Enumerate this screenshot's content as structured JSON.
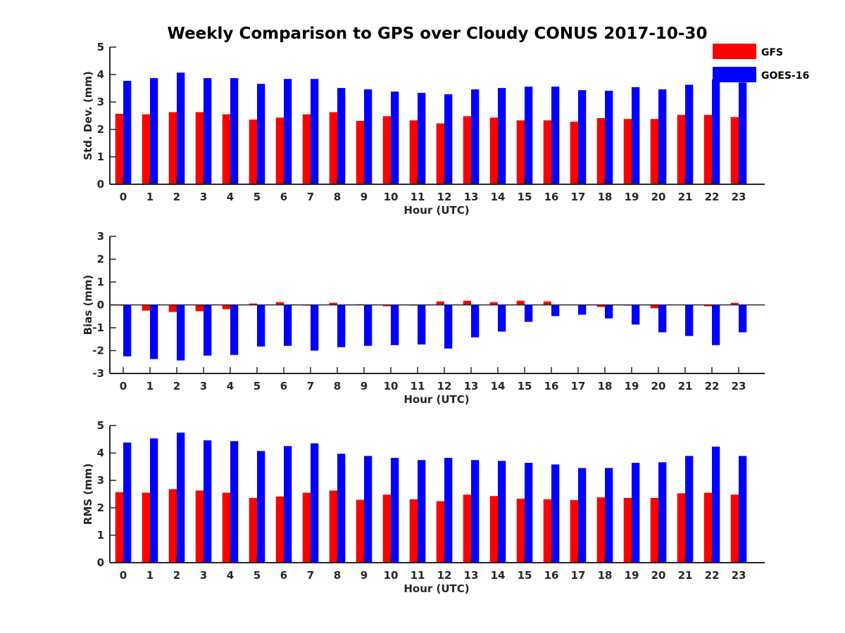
{
  "title": "Weekly Comparison to GPS over Cloudy CONUS 2017-10-30",
  "colors": {
    "GFS": "#ff0000",
    "GOES-16": "#0000ff",
    "axis": "#262626"
  },
  "legend": [
    {
      "name": "GFS",
      "color": "#ff0000"
    },
    {
      "name": "GOES-16",
      "color": "#0000ff"
    }
  ],
  "chart_data": [
    {
      "type": "bar",
      "title": "Weekly Comparison to GPS over Cloudy CONUS 2017-10-30",
      "xlabel": "Hour (UTC)",
      "ylabel": "Std. Dev. (mm)",
      "ylim": [
        0,
        5
      ],
      "yticks": [
        0,
        1,
        2,
        3,
        4,
        5
      ],
      "categories": [
        "0",
        "1",
        "2",
        "3",
        "4",
        "5",
        "6",
        "7",
        "8",
        "9",
        "10",
        "11",
        "12",
        "13",
        "14",
        "15",
        "16",
        "17",
        "18",
        "19",
        "20",
        "21",
        "22",
        "23"
      ],
      "legend_position": "top-right",
      "grid": false,
      "series": [
        {
          "name": "GFS",
          "values": [
            2.57,
            2.55,
            2.63,
            2.63,
            2.55,
            2.36,
            2.43,
            2.55,
            2.63,
            2.31,
            2.48,
            2.33,
            2.22,
            2.48,
            2.43,
            2.33,
            2.33,
            2.28,
            2.41,
            2.38,
            2.38,
            2.53,
            2.53,
            2.45
          ]
        },
        {
          "name": "GOES-16",
          "values": [
            3.77,
            3.87,
            4.07,
            3.87,
            3.87,
            3.66,
            3.84,
            3.84,
            3.51,
            3.46,
            3.38,
            3.33,
            3.28,
            3.46,
            3.51,
            3.56,
            3.56,
            3.43,
            3.41,
            3.54,
            3.46,
            3.63,
            3.82,
            3.71
          ]
        }
      ]
    },
    {
      "type": "bar",
      "xlabel": "Hour (UTC)",
      "ylabel": "Bias (mm)",
      "ylim": [
        -3,
        3
      ],
      "yticks": [
        -3,
        -2,
        -1,
        0,
        1,
        2,
        3
      ],
      "categories": [
        "0",
        "1",
        "2",
        "3",
        "4",
        "5",
        "6",
        "7",
        "8",
        "9",
        "10",
        "11",
        "12",
        "13",
        "14",
        "15",
        "16",
        "17",
        "18",
        "19",
        "20",
        "21",
        "22",
        "23"
      ],
      "grid": false,
      "series": [
        {
          "name": "GFS",
          "values": [
            -0.03,
            -0.25,
            -0.31,
            -0.28,
            -0.19,
            0.06,
            0.12,
            -0.03,
            0.09,
            0.03,
            -0.06,
            -0.03,
            0.15,
            0.18,
            0.12,
            0.18,
            0.15,
            0.0,
            -0.09,
            -0.03,
            -0.15,
            0.0,
            -0.06,
            0.09
          ]
        },
        {
          "name": "GOES-16",
          "values": [
            -2.25,
            -2.37,
            -2.43,
            -2.22,
            -2.19,
            -1.82,
            -1.79,
            -2.0,
            -1.85,
            -1.79,
            -1.76,
            -1.73,
            -1.91,
            -1.42,
            -1.17,
            -0.74,
            -0.49,
            -0.43,
            -0.59,
            -0.86,
            -1.2,
            -1.36,
            -1.76,
            -1.2
          ]
        }
      ]
    },
    {
      "type": "bar",
      "xlabel": "Hour (UTC)",
      "ylabel": "RMS (mm)",
      "ylim": [
        0,
        5
      ],
      "yticks": [
        0,
        1,
        2,
        3,
        4,
        5
      ],
      "categories": [
        "0",
        "1",
        "2",
        "3",
        "4",
        "5",
        "6",
        "7",
        "8",
        "9",
        "10",
        "11",
        "12",
        "13",
        "14",
        "15",
        "16",
        "17",
        "18",
        "19",
        "20",
        "21",
        "22",
        "23"
      ],
      "grid": false,
      "series": [
        {
          "name": "GFS",
          "values": [
            2.57,
            2.55,
            2.68,
            2.63,
            2.55,
            2.36,
            2.41,
            2.55,
            2.63,
            2.29,
            2.48,
            2.31,
            2.24,
            2.48,
            2.43,
            2.33,
            2.31,
            2.28,
            2.38,
            2.36,
            2.36,
            2.53,
            2.55,
            2.48
          ]
        },
        {
          "name": "GOES-16",
          "values": [
            4.38,
            4.53,
            4.74,
            4.46,
            4.43,
            4.07,
            4.25,
            4.35,
            3.97,
            3.89,
            3.82,
            3.74,
            3.82,
            3.74,
            3.71,
            3.64,
            3.58,
            3.45,
            3.45,
            3.64,
            3.66,
            3.89,
            4.23,
            3.89
          ]
        }
      ]
    }
  ]
}
